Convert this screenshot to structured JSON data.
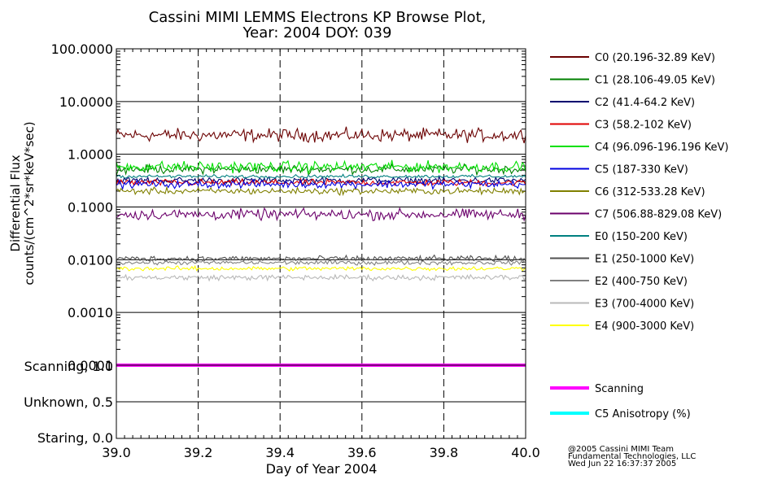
{
  "chart_data": [
    {
      "type": "line",
      "title_lines": [
        "Cassini MIMI LEMMS Electrons KP Browse Plot,",
        "Year: 2004 DOY: 039"
      ],
      "ylabel_lines": [
        "Differential Flux",
        "counts/(cm^2*sr*keV*sec)"
      ],
      "xlabel": "Day of Year 2004",
      "xlim": [
        39.0,
        40.0
      ],
      "ylim": [
        0.0001,
        100
      ],
      "yscale": "log",
      "x_ticks": [
        "39.0",
        "39.2",
        "39.4",
        "39.6",
        "39.8",
        "40.0"
      ],
      "x_tick_values": [
        39.0,
        39.2,
        39.4,
        39.6,
        39.8,
        40.0
      ],
      "y_ticks": [
        "100.0000",
        "10.0000",
        "1.0000",
        "0.1000",
        "0.0100",
        "0.0010",
        "0.0001"
      ],
      "y_tick_values": [
        100,
        10,
        1,
        0.1,
        0.01,
        0.001,
        0.0001
      ],
      "grid": true,
      "legend_position": "right",
      "series": [
        {
          "name": "C0 (20.196-32.89 KeV)",
          "color": "#6b0000",
          "level": 2.3,
          "noise": 0.06
        },
        {
          "name": "C1 (28.106-49.05 KeV)",
          "color": "#008000",
          "level": 0.52,
          "noise": 0.04
        },
        {
          "name": "C2 (41.4-64.2 KeV)",
          "color": "#00006e",
          "level": 0.32,
          "noise": 0.03
        },
        {
          "name": "C3 (58.2-102 KeV)",
          "color": "#e00000",
          "level": 0.29,
          "noise": 0.03
        },
        {
          "name": "C4 (96.096-196.196 KeV)",
          "color": "#00e000",
          "level": 0.58,
          "noise": 0.05
        },
        {
          "name": "C5 (187-330 KeV)",
          "color": "#0000e0",
          "level": 0.27,
          "noise": 0.035
        },
        {
          "name": "C6 (312-533.28 KeV)",
          "color": "#808000",
          "level": 0.2,
          "noise": 0.03
        },
        {
          "name": "C7 (506.88-829.08 KeV)",
          "color": "#6b006b",
          "level": 0.072,
          "noise": 0.05
        },
        {
          "name": "E0 (150-200 KeV)",
          "color": "#008080",
          "level": 0.38,
          "noise": 0.015
        },
        {
          "name": "E1 (250-1000 KeV)",
          "color": "#505050",
          "level": 0.0105,
          "noise": 0.025
        },
        {
          "name": "E2 (400-750 KeV)",
          "color": "#808080",
          "level": 0.0088,
          "noise": 0.02
        },
        {
          "name": "E3 (700-4000 KeV)",
          "color": "#b8b8b8",
          "level": 0.0046,
          "noise": 0.025
        },
        {
          "name": "E4 (900-3000 KeV)",
          "color": "#ffff00",
          "level": 0.0068,
          "noise": 0.02
        }
      ]
    },
    {
      "type": "line",
      "xlim": [
        39.0,
        40.0
      ],
      "ylim": [
        0.0,
        1.0
      ],
      "y_ticks": [
        "Scanning, 1.0",
        "Unknown, 0.5",
        "Staring, 0.0"
      ],
      "y_tick_values": [
        1.0,
        0.5,
        0.0
      ],
      "grid": true,
      "series": [
        {
          "name": "Scanning",
          "color": "#ff00ff",
          "value": 1.0
        },
        {
          "name": "C5 Anisotropy (%)",
          "color": "#00ffff",
          "value": null
        }
      ]
    }
  ],
  "credit": [
    "@2005 Cassini MIMI Team",
    "Fundamental Technologies, LLC",
    "Wed Jun 22 16:37:37 2005"
  ]
}
